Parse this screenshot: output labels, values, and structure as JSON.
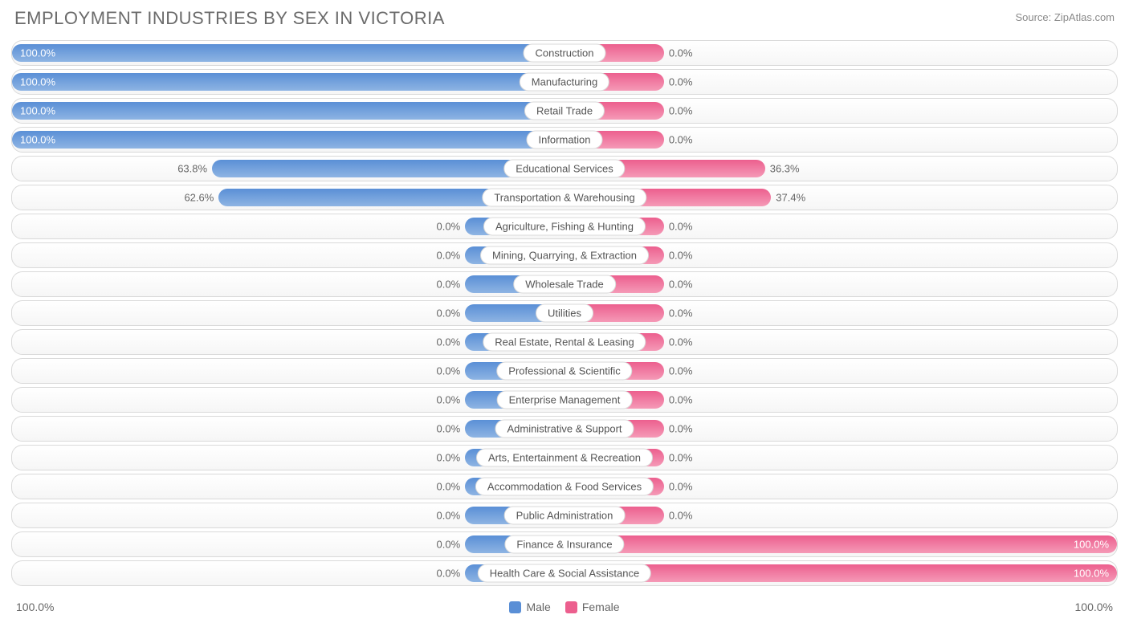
{
  "title": "EMPLOYMENT INDUSTRIES BY SEX IN VICTORIA",
  "source": "Source: ZipAtlas.com",
  "colors": {
    "male_top": "#5a8fd6",
    "male_bot": "#8eb4e3",
    "female_top": "#ec5f8e",
    "female_bot": "#f59ab7",
    "row_border": "#d9d9d9",
    "text": "#666666",
    "title_text": "#6b6b6b",
    "background": "#ffffff"
  },
  "axis": {
    "left_label": "100.0%",
    "right_label": "100.0%"
  },
  "legend": {
    "male": "Male",
    "female": "Female"
  },
  "min_bar_pct": 18,
  "rows": [
    {
      "label": "Construction",
      "male": 100.0,
      "female": 0.0
    },
    {
      "label": "Manufacturing",
      "male": 100.0,
      "female": 0.0
    },
    {
      "label": "Retail Trade",
      "male": 100.0,
      "female": 0.0
    },
    {
      "label": "Information",
      "male": 100.0,
      "female": 0.0
    },
    {
      "label": "Educational Services",
      "male": 63.8,
      "female": 36.3
    },
    {
      "label": "Transportation & Warehousing",
      "male": 62.6,
      "female": 37.4
    },
    {
      "label": "Agriculture, Fishing & Hunting",
      "male": 0.0,
      "female": 0.0
    },
    {
      "label": "Mining, Quarrying, & Extraction",
      "male": 0.0,
      "female": 0.0
    },
    {
      "label": "Wholesale Trade",
      "male": 0.0,
      "female": 0.0
    },
    {
      "label": "Utilities",
      "male": 0.0,
      "female": 0.0
    },
    {
      "label": "Real Estate, Rental & Leasing",
      "male": 0.0,
      "female": 0.0
    },
    {
      "label": "Professional & Scientific",
      "male": 0.0,
      "female": 0.0
    },
    {
      "label": "Enterprise Management",
      "male": 0.0,
      "female": 0.0
    },
    {
      "label": "Administrative & Support",
      "male": 0.0,
      "female": 0.0
    },
    {
      "label": "Arts, Entertainment & Recreation",
      "male": 0.0,
      "female": 0.0
    },
    {
      "label": "Accommodation & Food Services",
      "male": 0.0,
      "female": 0.0
    },
    {
      "label": "Public Administration",
      "male": 0.0,
      "female": 0.0
    },
    {
      "label": "Finance & Insurance",
      "male": 0.0,
      "female": 100.0
    },
    {
      "label": "Health Care & Social Assistance",
      "male": 0.0,
      "female": 100.0
    }
  ]
}
